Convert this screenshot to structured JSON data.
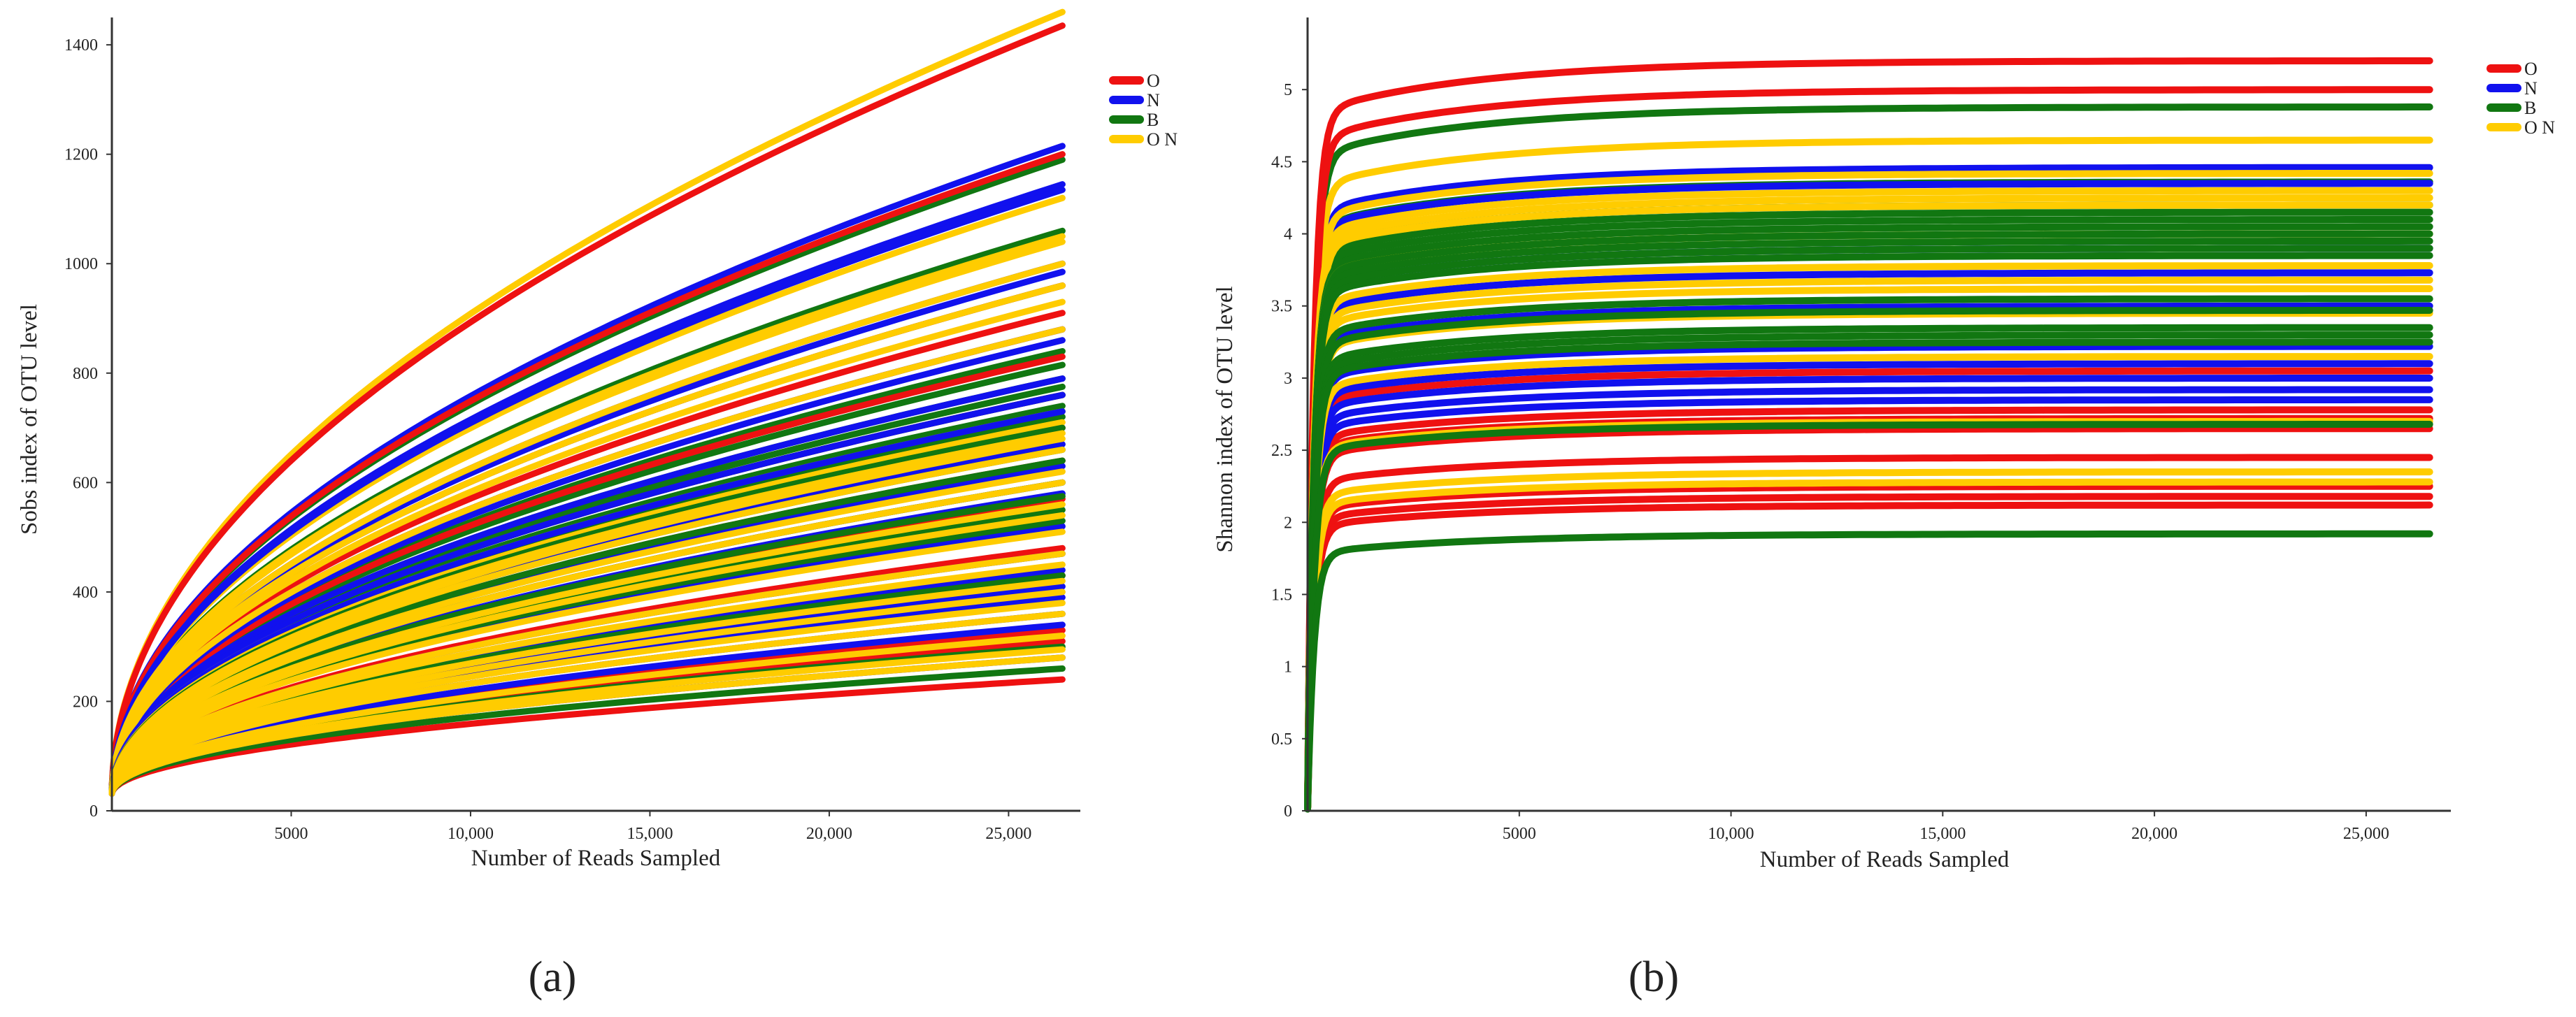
{
  "figure": {
    "panel_labels": [
      "(a)",
      "(b)"
    ],
    "colors": {
      "O": "#ee1111",
      "N": "#1111ee",
      "B": "#117711",
      "O_N": "#ffcc00",
      "axis": "#333333"
    },
    "legend_labels": [
      "O",
      "N",
      "B",
      "O N"
    ]
  },
  "chart_data": [
    {
      "type": "line",
      "title": "",
      "panel_label": "(a)",
      "xlabel": "Number of Reads Sampled",
      "ylabel": "Sobs index of OTU level",
      "xlim": [
        0,
        27000
      ],
      "ylim": [
        0,
        1450
      ],
      "xticks": [
        5000,
        10000,
        15000,
        20000,
        25000
      ],
      "xtick_labels": [
        "5000",
        "10,000",
        "15,000",
        "20,000",
        "25,000"
      ],
      "yticks": [
        0,
        200,
        400,
        600,
        800,
        1000,
        1200,
        1400
      ],
      "ytick_labels": [
        "0",
        "200",
        "400",
        "600",
        "800",
        "1000",
        "1200",
        "1400"
      ],
      "x_end": 26500,
      "curve_model": "rarefaction: y = 30 + (final - 30) * (x / 26500)^0.5",
      "legend": {
        "placement": "top-right",
        "entries": [
          "O",
          "N",
          "B",
          "O N"
        ]
      },
      "series": [
        {
          "name": "O",
          "group": "O",
          "final_values": [
            1435,
            1200,
            960,
            910,
            880,
            830,
            760,
            700,
            640,
            570,
            480,
            430,
            330,
            310,
            240
          ]
        },
        {
          "name": "N",
          "group": "N",
          "final_values": [
            1215,
            1145,
            1135,
            1000,
            985,
            880,
            860,
            790,
            760,
            730,
            670,
            630,
            600,
            580,
            520,
            470,
            440,
            410,
            390,
            360,
            340,
            280
          ]
        },
        {
          "name": "B",
          "group": "B",
          "final_values": [
            1190,
            1060,
            960,
            840,
            815,
            790,
            775,
            760,
            740,
            720,
            700,
            660,
            640,
            600,
            575,
            550,
            530,
            430,
            300,
            260
          ]
        },
        {
          "name": "O N",
          "group": "O N",
          "final_values": [
            1460,
            1120,
            1050,
            1040,
            1000,
            960,
            930,
            880,
            730,
            710,
            690,
            680,
            660,
            620,
            600,
            560,
            540,
            510,
            470,
            450,
            420,
            400,
            380,
            360,
            320,
            295,
            280
          ]
        }
      ]
    },
    {
      "type": "line",
      "title": "",
      "panel_label": "(b)",
      "xlabel": "Number of Reads Sampled",
      "ylabel": "Shannon index of OTU level",
      "xlim": [
        0,
        27000
      ],
      "ylim": [
        0,
        5.5
      ],
      "xticks": [
        5000,
        10000,
        15000,
        20000,
        25000
      ],
      "xtick_labels": [
        "5000",
        "10,000",
        "15,000",
        "20,000",
        "25,000"
      ],
      "yticks": [
        0,
        0.5,
        1,
        1.5,
        2,
        2.5,
        3,
        3.5,
        4,
        4.5,
        5
      ],
      "ytick_labels": [
        "0",
        "0.5",
        "1",
        "1.5",
        "2",
        "2.5",
        "3",
        "3.5",
        "4",
        "4.5",
        "5"
      ],
      "x_end": 26500,
      "curve_model": "plateau: y = final * (1 - exp(-x / 150)) * (1 - 0.07 * exp(-x / 4000))",
      "legend": {
        "placement": "top-right",
        "entries": [
          "O",
          "N",
          "B",
          "O N"
        ]
      },
      "series": [
        {
          "name": "O",
          "group": "O",
          "final_values": [
            5.2,
            5.0,
            3.05,
            2.78,
            2.72,
            2.65,
            2.45,
            2.25,
            2.18,
            2.12
          ]
        },
        {
          "name": "N",
          "group": "N",
          "final_values": [
            4.46,
            4.35,
            3.9,
            3.73,
            3.5,
            3.22,
            3.1,
            3.0,
            2.92,
            2.85
          ]
        },
        {
          "name": "B",
          "group": "B",
          "final_values": [
            4.88,
            4.36,
            4.2,
            4.15,
            4.1,
            4.05,
            4.0,
            3.95,
            3.9,
            3.85,
            3.55,
            3.47,
            3.35,
            3.3,
            3.25,
            2.68,
            1.92
          ]
        },
        {
          "name": "O N",
          "group": "O N",
          "final_values": [
            4.65,
            4.42,
            4.3,
            4.25,
            4.2,
            4.0,
            3.78,
            3.68,
            3.62,
            3.45,
            3.15,
            2.7,
            2.35,
            2.28
          ]
        }
      ]
    }
  ]
}
